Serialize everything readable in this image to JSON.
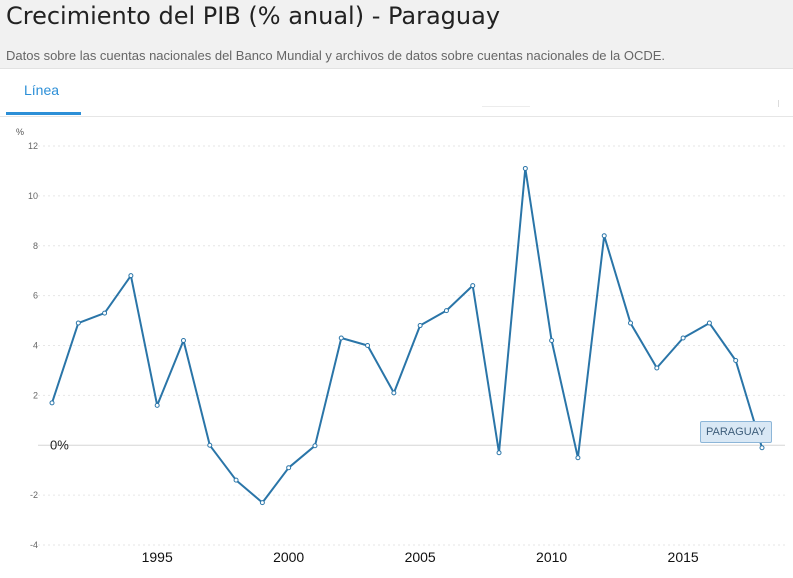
{
  "header": {
    "title": "Crecimiento del PIB (% anual) - Paraguay",
    "subtitle": "Datos sobre las cuentas nacionales del Banco Mundial y archivos de datos sobre cuentas nacionales de la OCDE."
  },
  "tabs": [
    {
      "label": "Línea",
      "active": true
    }
  ],
  "tooltip": {
    "label": "PARAGUAY"
  },
  "chart_data": {
    "type": "line",
    "title": "Crecimiento del PIB (% anual) - Paraguay",
    "xlabel": "",
    "ylabel": "%",
    "x": [
      1991,
      1992,
      1993,
      1994,
      1995,
      1996,
      1997,
      1998,
      1999,
      2000,
      2001,
      2002,
      2003,
      2004,
      2005,
      2006,
      2007,
      2008,
      2009,
      2010,
      2011,
      2012,
      2013,
      2014,
      2015,
      2016,
      2017,
      2018
    ],
    "series": [
      {
        "name": "PARAGUAY",
        "color": "#2a75a8",
        "values": [
          1.7,
          4.9,
          5.3,
          6.8,
          1.6,
          4.2,
          0.0,
          -1.4,
          -2.3,
          -0.9,
          -0.02,
          4.3,
          4.0,
          2.1,
          4.8,
          5.4,
          6.4,
          -0.3,
          11.1,
          4.2,
          -0.5,
          8.4,
          4.9,
          3.1,
          4.3,
          4.9,
          3.4,
          -0.1
        ]
      }
    ],
    "y_ticks": [
      12,
      10,
      8,
      6,
      4,
      2,
      0,
      -2,
      -4
    ],
    "y_tick_labels": [
      "12",
      "10",
      "8",
      "6",
      "4",
      "2",
      "0%",
      "-2",
      "-4"
    ],
    "x_ticks": [
      1995,
      2000,
      2005,
      2010,
      2015
    ],
    "x_tick_labels": [
      "1995",
      "2000",
      "2005",
      "2010",
      "2015"
    ],
    "ylim": [
      -4,
      12
    ],
    "xlim": [
      1991,
      2018
    ],
    "grid": true,
    "legend": "none"
  }
}
